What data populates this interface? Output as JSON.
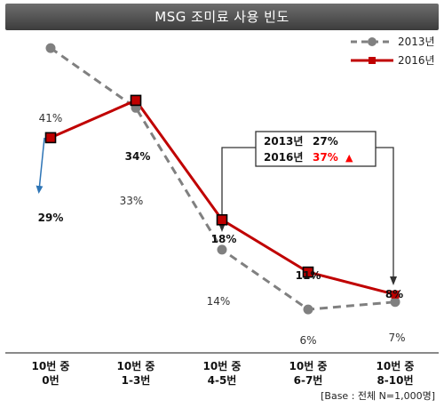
{
  "chart_data": {
    "type": "line",
    "title": "MSG 조미료 사용 빈도",
    "categories": [
      "10번 중\n0번",
      "10번 중\n1-3번",
      "10번 중\n4-5번",
      "10번 중\n6-7번",
      "10번 중\n8-10번"
    ],
    "series": [
      {
        "name": "2013년",
        "values": [
          41,
          33,
          14,
          6,
          7
        ],
        "labels": [
          "41%",
          "33%",
          "14%",
          "6%",
          "7%"
        ],
        "color": "#808080",
        "style": "dashed"
      },
      {
        "name": "2016년",
        "values": [
          29,
          34,
          18,
          11,
          8
        ],
        "labels": [
          "29%",
          "34%",
          "18%",
          "11%",
          "8%"
        ],
        "color": "#c00000",
        "style": "solid"
      }
    ],
    "ylim": [
      0,
      50
    ],
    "grid": false,
    "legend_position": "top-right",
    "callout": {
      "row1_label": "2013년",
      "row1_value": "27%",
      "row2_label": "2016년",
      "row2_value": "37%",
      "marker": "▲",
      "highlight_color": "#ff0000"
    },
    "note": "[Base : 전체   N=1,000명]"
  }
}
